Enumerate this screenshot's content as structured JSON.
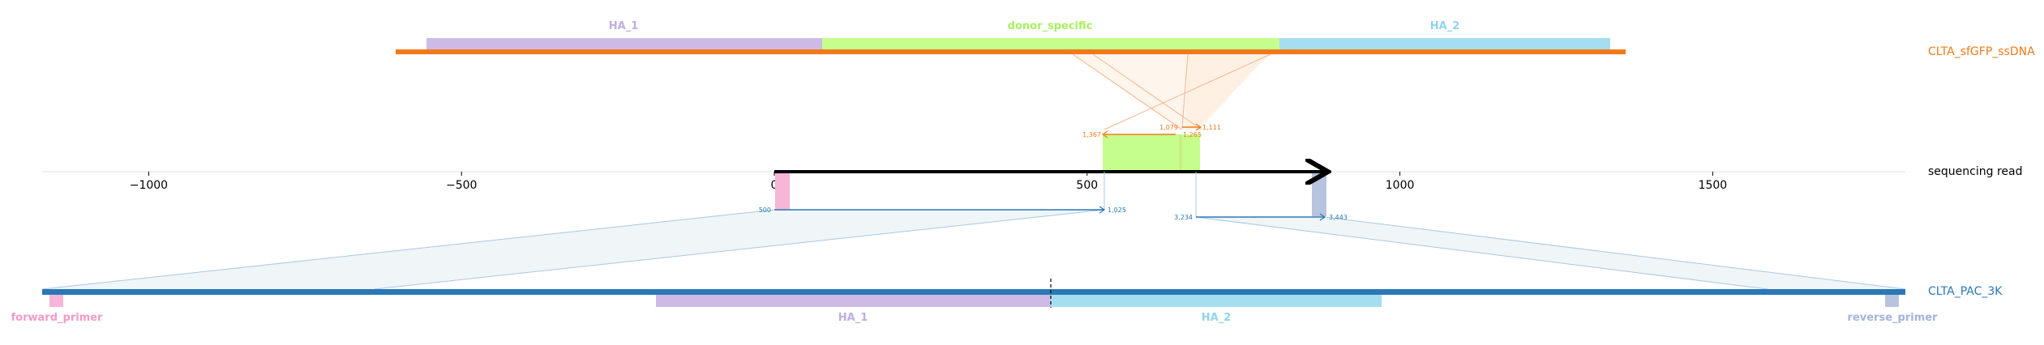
{
  "colors": {
    "ssdna": "#f07a1b",
    "donor_specific": "#c5fe8c",
    "donor_specific_text": "#a8f060",
    "ha1": "#cdbbe6",
    "ha1_text": "#c0aee0",
    "ha2": "#a5def0",
    "ha2_text": "#90d4ec",
    "reference": "#2a78b5",
    "forward_primer": "#f7b5d7",
    "forward_primer_text": "#f49ac8",
    "reverse_primer": "#b7c3df",
    "reverse_primer_text": "#a4b4d8",
    "read": "#000000",
    "axis": "#dddddd"
  },
  "tracks": {
    "ssdna": {
      "label": "CLTA_sfGFP_ssDNA",
      "features": [
        {
          "name": "HA_1",
          "start": -560,
          "end": 70
        },
        {
          "name": "donor_specific",
          "start": 70,
          "end": 800
        },
        {
          "name": "HA_2",
          "start": 800,
          "end": 1330
        }
      ],
      "span": [
        -600,
        1360
      ]
    },
    "read": {
      "label": "sequencing read",
      "span": [
        0,
        880
      ]
    },
    "reference": {
      "label": "CLTA_PAC_3K",
      "features": [
        {
          "name": "forward_primer"
        },
        {
          "name": "HA_1"
        },
        {
          "name": "HA_2"
        },
        {
          "name": "reverse_primer"
        }
      ]
    }
  },
  "axis": {
    "ticks": [
      -1000,
      -500,
      0,
      500,
      1000,
      1500
    ],
    "tick_labels": [
      "−1000",
      "−500",
      "0",
      "500",
      "1000",
      "1500"
    ],
    "range": [
      -1165,
      1800
    ]
  },
  "alignments": [
    {
      "kind": "reference",
      "read_start": 0,
      "read_end": 525,
      "ref_label_start": "500",
      "ref_label_end": "1,025"
    },
    {
      "kind": "reference",
      "read_start": 670,
      "read_end": 880,
      "ref_label_start": "3,234",
      "ref_label_end": "3,443"
    },
    {
      "kind": "donor",
      "read_start": 525,
      "read_end": 655,
      "donor_label_start": "1,367",
      "donor_label_end": "1,265"
    },
    {
      "kind": "donor",
      "read_start": 640,
      "read_end": 680,
      "donor_label_start": "1,079",
      "donor_label_end": "1,111"
    }
  ],
  "read_features": [
    {
      "name": "forward_primer",
      "start": 0,
      "end": 25
    },
    {
      "name": "reverse_primer",
      "start": 855,
      "end": 880
    }
  ]
}
